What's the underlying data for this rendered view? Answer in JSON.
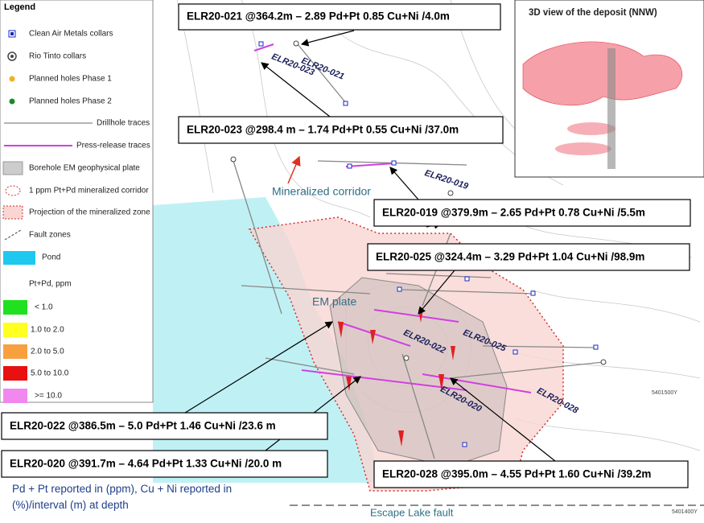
{
  "legend": {
    "title": "Legend",
    "items": [
      "Clean Air Metals collars",
      "Rio Tinto collars",
      "Planned holes Phase 1",
      "Planned holes Phase 2",
      "Drillhole traces",
      "Press-release traces",
      "Borehole EM geophysical plate",
      "1 ppm Pt+Pd mineralized corridor",
      "Projection of the mineralized zone",
      "Fault zones",
      "Pond"
    ],
    "scale_title": "Pt+Pd, ppm",
    "scale": [
      "< 1.0",
      "1.0 to 2.0",
      "2.0 to 5.0",
      "5.0 to 10.0",
      ">= 10.0"
    ]
  },
  "callouts": [
    "ELR20-021 @364.2m – 2.89 Pd+Pt 0.85 Cu+Ni /4.0m",
    "ELR20-023 @298.4 m – 1.74 Pd+Pt 0.55 Cu+Ni /37.0m",
    "ELR20-019 @379.9m – 2.65 Pd+Pt 0.78 Cu+Ni /5.5m",
    "ELR20-025 @324.4m – 3.29 Pd+Pt 1.04 Cu+Ni /98.9m",
    "ELR20-022 @386.5m –  5.0 Pd+Pt 1.46 Cu+Ni /23.6 m",
    "ELR20-020 @391.7m – 4.64 Pd+Pt 1.33 Cu+Ni /20.0 m",
    "ELR20-028 @395.0m – 4.55 Pd+Pt 1.60 Cu+Ni /39.2m"
  ],
  "hole_labels": [
    "ELR20-021",
    "ELR20-023",
    "ELR20-019",
    "ELR20-022",
    "ELR20-025",
    "ELR20-020",
    "ELR20-028"
  ],
  "map_labels": {
    "corridor": "Mineralized corridor",
    "em_plate": "EM plate",
    "fault": "Escape Lake fault",
    "coords": [
      "5401500Y",
      "5401400Y"
    ]
  },
  "inset_title": "3D view of the deposit (NNW)",
  "footnote": "Pd + Pt reported in (ppm), Cu + Ni reported in (%)/interval (m) at depth"
}
